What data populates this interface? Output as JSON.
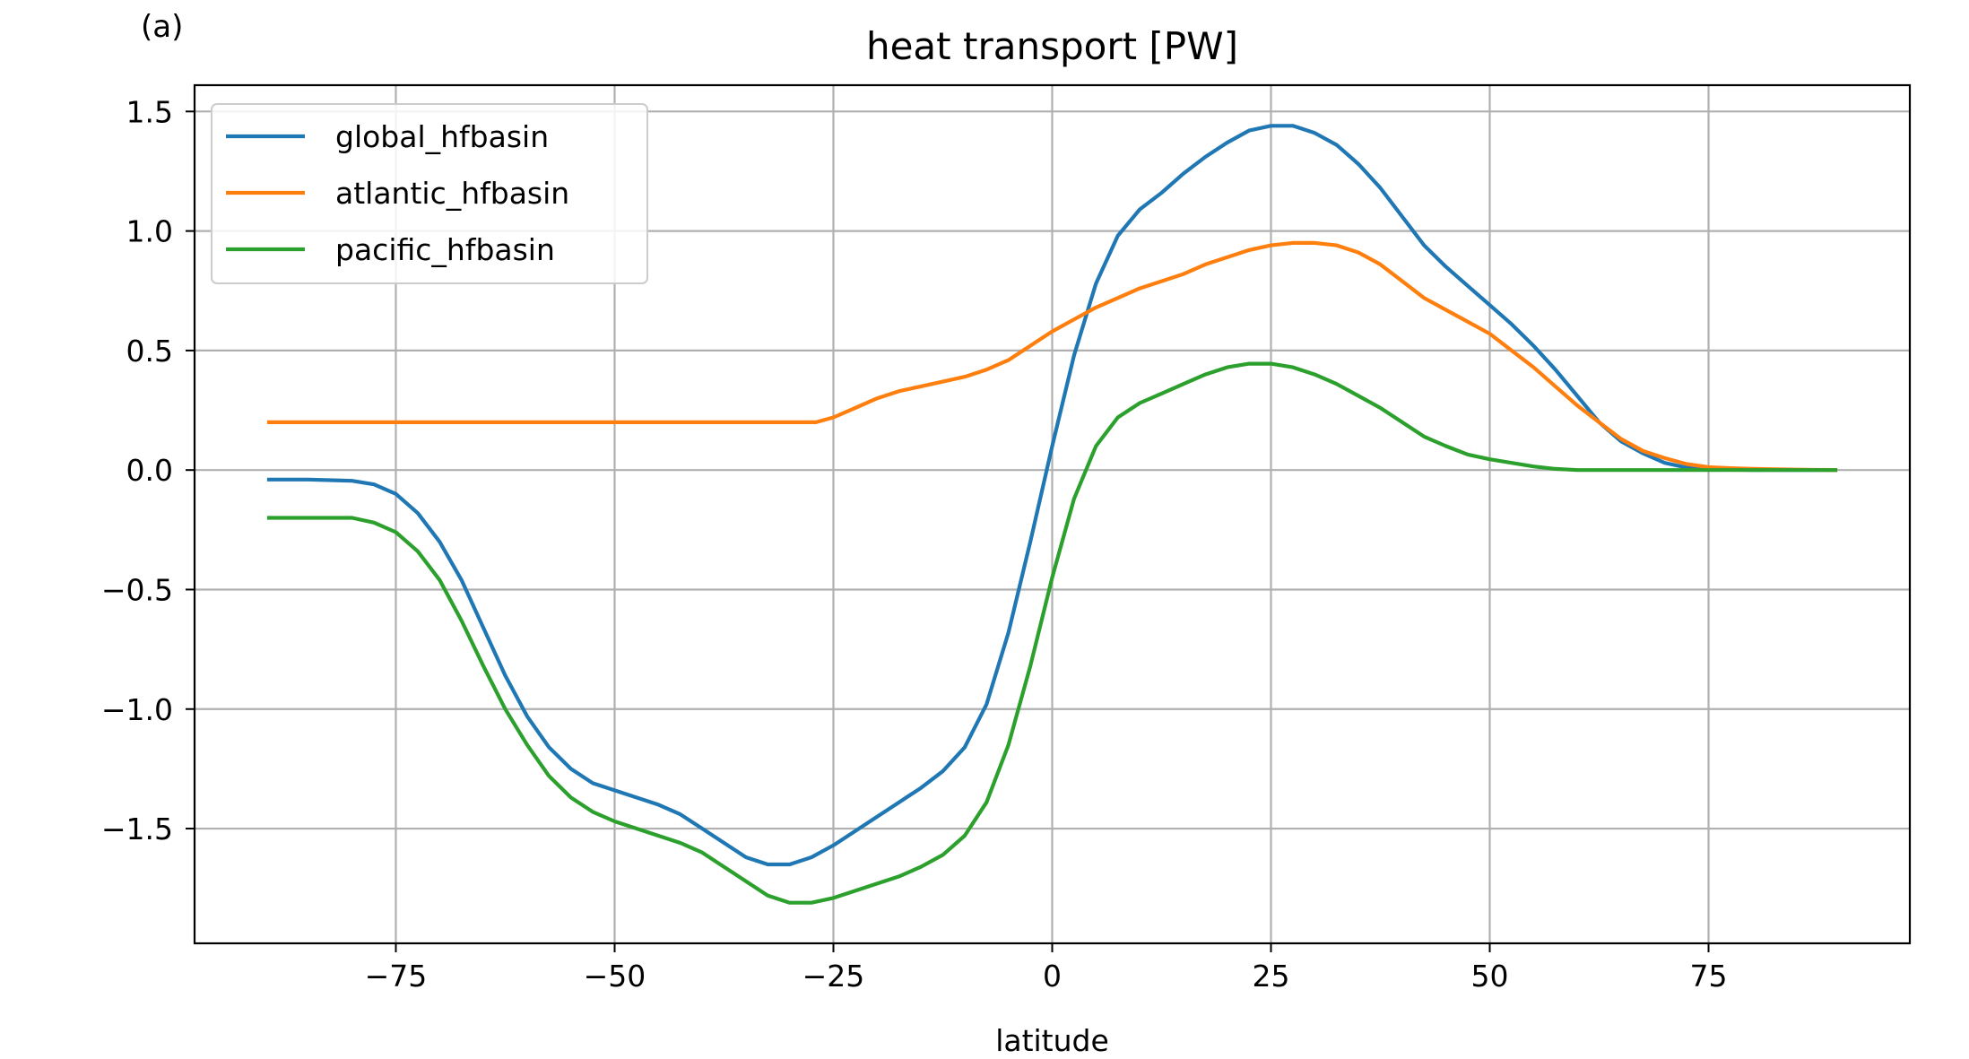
{
  "panel_label": "(a)",
  "chart_data": {
    "type": "line",
    "title": "heat transport [PW]",
    "xlabel": "latitude",
    "ylabel": "",
    "xlim": [
      -98,
      98
    ],
    "ylim": [
      -1.98,
      1.61
    ],
    "xticks": [
      -75,
      -50,
      -25,
      0,
      25,
      50,
      75
    ],
    "xtick_labels": [
      "−75",
      "−50",
      "−25",
      "0",
      "25",
      "50",
      "75"
    ],
    "yticks": [
      1.5,
      1.0,
      0.5,
      0.0,
      -0.5,
      -1.0,
      -1.5
    ],
    "ytick_labels": [
      "1.5",
      "1.0",
      "0.5",
      "0.0",
      "−0.5",
      "−1.0",
      "−1.5"
    ],
    "grid": true,
    "legend_position": "top-left",
    "series": [
      {
        "name": "global_hfbasin",
        "color": "#1f77b4",
        "x": [
          -89.5,
          -85,
          -80,
          -77.5,
          -75,
          -72.5,
          -70,
          -67.5,
          -65,
          -62.5,
          -60,
          -57.5,
          -55,
          -52.5,
          -50,
          -47.5,
          -45,
          -42.5,
          -40,
          -37.5,
          -35,
          -32.5,
          -30,
          -27.5,
          -25,
          -22.5,
          -20,
          -17.5,
          -15,
          -12.5,
          -10,
          -7.5,
          -5,
          -2.5,
          0,
          2.5,
          5,
          7.5,
          10,
          12.5,
          15,
          17.5,
          20,
          22.5,
          25,
          27.5,
          30,
          32.5,
          35,
          37.5,
          40,
          42.5,
          45,
          47.5,
          50,
          52.5,
          55,
          57.5,
          60,
          62.5,
          65,
          67.5,
          70,
          72.5,
          75,
          77.5,
          80,
          85,
          89.5
        ],
        "y": [
          -0.04,
          -0.04,
          -0.045,
          -0.06,
          -0.1,
          -0.18,
          -0.3,
          -0.46,
          -0.66,
          -0.86,
          -1.03,
          -1.16,
          -1.25,
          -1.31,
          -1.34,
          -1.37,
          -1.4,
          -1.44,
          -1.5,
          -1.56,
          -1.62,
          -1.65,
          -1.65,
          -1.62,
          -1.57,
          -1.51,
          -1.45,
          -1.39,
          -1.33,
          -1.26,
          -1.16,
          -0.98,
          -0.68,
          -0.3,
          0.1,
          0.48,
          0.78,
          0.98,
          1.09,
          1.16,
          1.24,
          1.31,
          1.37,
          1.42,
          1.44,
          1.44,
          1.41,
          1.36,
          1.28,
          1.18,
          1.06,
          0.94,
          0.85,
          0.77,
          0.69,
          0.61,
          0.52,
          0.42,
          0.31,
          0.2,
          0.12,
          0.07,
          0.03,
          0.01,
          0.005,
          0.002,
          0.0,
          0.0,
          0.0
        ]
      },
      {
        "name": "atlantic_hfbasin",
        "color": "#ff7f0e",
        "x": [
          -89.5,
          -80,
          -70,
          -60,
          -50,
          -40,
          -30,
          -27,
          -25,
          -22.5,
          -20,
          -17.5,
          -15,
          -12.5,
          -10,
          -7.5,
          -5,
          -2.5,
          0,
          2.5,
          5,
          7.5,
          10,
          12.5,
          15,
          17.5,
          20,
          22.5,
          25,
          27.5,
          30,
          32.5,
          35,
          37.5,
          40,
          42.5,
          45,
          47.5,
          50,
          52.5,
          55,
          57.5,
          60,
          62.5,
          65,
          67.5,
          70,
          72.5,
          75,
          77.5,
          80,
          85,
          89.5
        ],
        "y": [
          0.2,
          0.2,
          0.2,
          0.2,
          0.2,
          0.2,
          0.2,
          0.2,
          0.22,
          0.26,
          0.3,
          0.33,
          0.35,
          0.37,
          0.39,
          0.42,
          0.46,
          0.52,
          0.58,
          0.63,
          0.68,
          0.72,
          0.76,
          0.79,
          0.82,
          0.86,
          0.89,
          0.92,
          0.94,
          0.95,
          0.95,
          0.94,
          0.91,
          0.86,
          0.79,
          0.72,
          0.67,
          0.62,
          0.57,
          0.5,
          0.43,
          0.35,
          0.27,
          0.2,
          0.13,
          0.08,
          0.05,
          0.025,
          0.012,
          0.008,
          0.005,
          0.002,
          0.0
        ]
      },
      {
        "name": "pacific_hfbasin",
        "color": "#2ca02c",
        "x": [
          -89.5,
          -85,
          -80,
          -77.5,
          -75,
          -72.5,
          -70,
          -67.5,
          -65,
          -62.5,
          -60,
          -57.5,
          -55,
          -52.5,
          -50,
          -47.5,
          -45,
          -42.5,
          -40,
          -37.5,
          -35,
          -32.5,
          -30,
          -27.5,
          -25,
          -22.5,
          -20,
          -17.5,
          -15,
          -12.5,
          -10,
          -7.5,
          -5,
          -2.5,
          0,
          2.5,
          5,
          7.5,
          10,
          12.5,
          15,
          17.5,
          20,
          22.5,
          25,
          27.5,
          30,
          32.5,
          35,
          37.5,
          40,
          42.5,
          45,
          47.5,
          50,
          52.5,
          55,
          57.5,
          60,
          62.5,
          65,
          67.5,
          70,
          75,
          80,
          85,
          89.5
        ],
        "y": [
          -0.2,
          -0.2,
          -0.2,
          -0.22,
          -0.26,
          -0.34,
          -0.46,
          -0.63,
          -0.82,
          -1.0,
          -1.15,
          -1.28,
          -1.37,
          -1.43,
          -1.47,
          -1.5,
          -1.53,
          -1.56,
          -1.6,
          -1.66,
          -1.72,
          -1.78,
          -1.81,
          -1.81,
          -1.79,
          -1.76,
          -1.73,
          -1.7,
          -1.66,
          -1.61,
          -1.53,
          -1.39,
          -1.15,
          -0.82,
          -0.45,
          -0.12,
          0.1,
          0.22,
          0.28,
          0.32,
          0.36,
          0.4,
          0.43,
          0.445,
          0.445,
          0.43,
          0.4,
          0.36,
          0.31,
          0.26,
          0.2,
          0.14,
          0.1,
          0.065,
          0.045,
          0.03,
          0.015,
          0.005,
          0.0,
          0.0,
          0.0,
          0.0,
          0.0,
          0.0,
          0.0,
          0.0,
          0.0
        ]
      }
    ]
  }
}
